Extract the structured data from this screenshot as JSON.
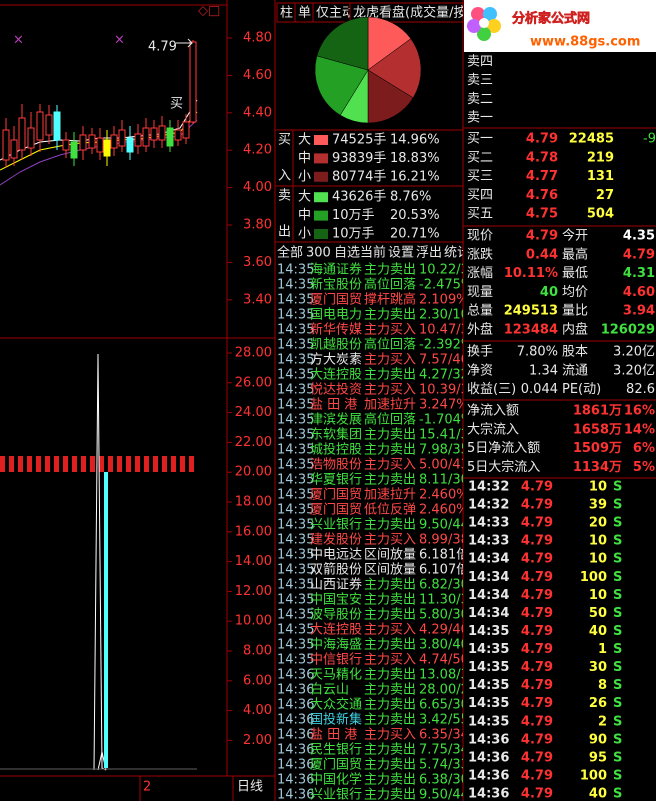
{
  "left_panel": {
    "price_axis": [
      "4.80",
      "4.60",
      "4.40",
      "4.20",
      "4.00",
      "3.80",
      "3.60",
      "3.40"
    ],
    "indicator_axis": [
      "28.00",
      "26.00",
      "24.00",
      "22.00",
      "20.00",
      "18.00",
      "16.00",
      "14.00",
      "12.00",
      "10.00",
      "8.00",
      "6.00",
      "4.00",
      "2.00"
    ],
    "price_marker": "4.79",
    "trade_tag": "买",
    "page_index": "2",
    "period": "日线"
  },
  "middle_panel": {
    "tabs": [
      "柱",
      "单",
      "仅主动",
      "龙虎看盘(成交量/按"
    ],
    "flow": {
      "buy_side": [
        "买",
        "入"
      ],
      "sell_side": [
        "卖",
        "出"
      ],
      "rows": [
        {
          "size": "大",
          "volume": "74525手",
          "pct": {
            "value": 14.96,
            "label": "14.96%"
          },
          "color": "#ff5a5a"
        },
        {
          "size": "中",
          "volume": "93839手",
          "pct": {
            "value": 18.83,
            "label": "18.83%"
          },
          "color": "#b43030"
        },
        {
          "size": "小",
          "volume": "80774手",
          "pct": {
            "value": 16.21,
            "label": "16.21%"
          },
          "color": "#7c1c1c"
        },
        {
          "size": "大",
          "volume": "43626手",
          "pct": {
            "value": 8.76,
            "label": "8.76%"
          },
          "color": "#50e050"
        },
        {
          "size": "中",
          "volume": "10万手",
          "pct": {
            "value": 20.53,
            "label": "20.53%"
          },
          "color": "#24a024"
        },
        {
          "size": "小",
          "volume": "10万手",
          "pct": {
            "value": 20.71,
            "label": "20.71%"
          },
          "color": "#146414"
        }
      ]
    },
    "filters": [
      "全部",
      "300",
      "自选",
      "当前",
      "设置",
      "浮出",
      "统计"
    ],
    "events": [
      {
        "time": "14:35",
        "name": "海通证券",
        "action": "主力卖出",
        "value": "10.22/3",
        "name_color": "#40e040",
        "color": "#40e040"
      },
      {
        "time": "14:35",
        "name": "新宝股份",
        "action": "高位回落",
        "value": "-2.475%",
        "name_color": "#40e040",
        "color": "#40e040"
      },
      {
        "time": "14:35",
        "name": "厦门国贸",
        "action": "撑杆跳高",
        "value": "2.109%",
        "name_color": "#ff4848",
        "color": "#ff4848"
      },
      {
        "time": "14:35",
        "name": "国电电力",
        "action": "主力卖出",
        "value": "2.30/10",
        "name_color": "#40e040",
        "color": "#40e040"
      },
      {
        "time": "14:35",
        "name": "新华传媒",
        "action": "主力买入",
        "value": "10.47/3",
        "name_color": "#ff4848",
        "color": "#ff4848"
      },
      {
        "time": "14:35",
        "name": "凯越股份",
        "action": "高位回落",
        "value": "-2.392%",
        "name_color": "#40e040",
        "color": "#40e040"
      },
      {
        "time": "14:35",
        "name": "方大炭素",
        "action": "主力买入",
        "value": "7.57/46",
        "name_color": "#e8e8e8",
        "color": "#ff4848"
      },
      {
        "time": "14:35",
        "name": "大连控股",
        "action": "主力卖出",
        "value": "4.27/32",
        "name_color": "#40e040",
        "color": "#40e040"
      },
      {
        "time": "14:35",
        "name": "悦达投资",
        "action": "主力买入",
        "value": "10.39/3",
        "name_color": "#ff4848",
        "color": "#ff4848"
      },
      {
        "time": "14:35",
        "name": "盐 田 港",
        "action": "加速拉升",
        "value": "3.247%",
        "name_color": "#ff4848",
        "color": "#ff4848"
      },
      {
        "time": "14:35",
        "name": "津滨发展",
        "action": "高位回落",
        "value": "-1.704%",
        "name_color": "#40e040",
        "color": "#40e040"
      },
      {
        "time": "14:35",
        "name": "东软集团",
        "action": "主力卖出",
        "value": "15.41/3",
        "name_color": "#40e040",
        "color": "#40e040"
      },
      {
        "time": "14:35",
        "name": "城投控股",
        "action": "主力卖出",
        "value": "7.98/35",
        "name_color": "#40e040",
        "color": "#40e040"
      },
      {
        "time": "14:35",
        "name": "浩物股份",
        "action": "主力买入",
        "value": "5.00/43",
        "name_color": "#ff4848",
        "color": "#ff4848"
      },
      {
        "time": "14:35",
        "name": "华夏银行",
        "action": "主力卖出",
        "value": "8.11/30",
        "name_color": "#40e040",
        "color": "#40e040"
      },
      {
        "time": "14:35",
        "name": "厦门国贸",
        "action": "加速拉升",
        "value": "2.460%",
        "name_color": "#ff4848",
        "color": "#ff4848"
      },
      {
        "time": "14:35",
        "name": "厦门国贸",
        "action": "低位反弹",
        "value": "2.460%",
        "name_color": "#ff4848",
        "color": "#ff4848"
      },
      {
        "time": "14:35",
        "name": "兴业银行",
        "action": "主力卖出",
        "value": "9.50/44",
        "name_color": "#40e040",
        "color": "#40e040"
      },
      {
        "time": "14:35",
        "name": "建发股份",
        "action": "主力买入",
        "value": "8.99/38",
        "name_color": "#ff4848",
        "color": "#ff4848"
      },
      {
        "time": "14:35",
        "name": "中电远达",
        "action": "区间放量",
        "value": "6.181倍",
        "name_color": "#e8e8e8",
        "color": "#e8e8e8"
      },
      {
        "time": "14:35",
        "name": "双箭股份",
        "action": "区间放量",
        "value": "6.107倍",
        "name_color": "#e8e8e8",
        "color": "#e8e8e8"
      },
      {
        "time": "14:35",
        "name": "山西证券",
        "action": "主力卖出",
        "value": "6.82/30",
        "name_color": "#e8e8e8",
        "color": "#40e040"
      },
      {
        "time": "14:35",
        "name": "中国宝安",
        "action": "主力卖出",
        "value": "11.30/3",
        "name_color": "#40e040",
        "color": "#40e040"
      },
      {
        "time": "14:35",
        "name": "波导股份",
        "action": "主力卖出",
        "value": "5.80/30",
        "name_color": "#40e040",
        "color": "#40e040"
      },
      {
        "time": "14:35",
        "name": "大连控股",
        "action": "主力买入",
        "value": "4.29/40",
        "name_color": "#ff4848",
        "color": "#ff4848"
      },
      {
        "time": "14:35",
        "name": "中海海盛",
        "action": "主力卖出",
        "value": "3.80/40",
        "name_color": "#40e040",
        "color": "#40e040"
      },
      {
        "time": "14:35",
        "name": "中信银行",
        "action": "主力买入",
        "value": "4.74/50",
        "name_color": "#ff4848",
        "color": "#ff4848"
      },
      {
        "time": "14:36",
        "name": "天马精化",
        "action": "主力卖出",
        "value": "13.08/3",
        "name_color": "#40e040",
        "color": "#40e040"
      },
      {
        "time": "14:36",
        "name": "白云山",
        "action": "主力卖出",
        "value": "28.00/2",
        "name_color": "#40e040",
        "color": "#40e040"
      },
      {
        "time": "14:36",
        "name": "大众交通",
        "action": "主力卖出",
        "value": "6.65/30",
        "name_color": "#40e040",
        "color": "#40e040"
      },
      {
        "time": "14:36",
        "name": "国投新集",
        "action": "主力卖出",
        "value": "3.42/55",
        "name_color": "#40d0e0",
        "color": "#40e040"
      },
      {
        "time": "14:36",
        "name": "盐 田 港",
        "action": "主力买入",
        "value": "6.35/34",
        "name_color": "#ff4848",
        "color": "#ff4848"
      },
      {
        "time": "14:36",
        "name": "民生银行",
        "action": "主力卖出",
        "value": "7.75/34",
        "name_color": "#40e040",
        "color": "#40e040"
      },
      {
        "time": "14:36",
        "name": "厦门国贸",
        "action": "主力卖出",
        "value": "5.74/33",
        "name_color": "#40e040",
        "color": "#40e040"
      },
      {
        "time": "14:36",
        "name": "中国化学",
        "action": "主力卖出",
        "value": "6.38/30",
        "name_color": "#40e040",
        "color": "#40e040"
      },
      {
        "time": "14:36",
        "name": "兴业银行",
        "action": "主力卖出",
        "value": "9.50/44",
        "name_color": "#40e040",
        "color": "#40e040"
      }
    ]
  },
  "right_panel": {
    "logo": {
      "title": "分析家公式网",
      "url": "www.88gs.com"
    },
    "asks": [
      "卖四",
      "卖三",
      "卖二",
      "卖一"
    ],
    "bids": [
      {
        "label": "买一",
        "price": "4.79",
        "volume": "22485",
        "change": "-9"
      },
      {
        "label": "买二",
        "price": "4.78",
        "volume": "219"
      },
      {
        "label": "买三",
        "price": "4.77",
        "volume": "131"
      },
      {
        "label": "买四",
        "price": "4.76",
        "volume": "27"
      },
      {
        "label": "买五",
        "price": "4.75",
        "volume": "504"
      }
    ],
    "quote": [
      [
        {
          "label": "现价",
          "value": "4.79",
          "color": "#ff3232"
        },
        {
          "label": "今开",
          "value": "4.35",
          "color": "#ffffff"
        }
      ],
      [
        {
          "label": "涨跌",
          "value": "0.44",
          "color": "#ff3232"
        },
        {
          "label": "最高",
          "value": "4.79",
          "color": "#ff3232"
        }
      ],
      [
        {
          "label": "涨幅",
          "value": "10.11%",
          "color": "#ff3232"
        },
        {
          "label": "最低",
          "value": "4.31",
          "color": "#40e040"
        }
      ],
      [
        {
          "label": "现量",
          "value": "40",
          "color": "#40e040"
        },
        {
          "label": "均价",
          "value": "4.60",
          "color": "#ff3232"
        }
      ],
      [
        {
          "label": "总量",
          "value": "249513",
          "color": "#ffff40"
        },
        {
          "label": "量比",
          "value": "3.94",
          "color": "#ff3232"
        }
      ],
      [
        {
          "label": "外盘",
          "value": "123484",
          "color": "#ff3232"
        },
        {
          "label": "内盘",
          "value": "126029",
          "color": "#40e040"
        }
      ]
    ],
    "fundamentals": [
      [
        {
          "label": "换手",
          "value": "7.80%"
        },
        {
          "label": "股本",
          "value": "3.20亿"
        }
      ],
      [
        {
          "label": "净资",
          "value": "1.34"
        },
        {
          "label": "流通",
          "value": "3.20亿"
        }
      ],
      [
        {
          "label": "收益(三)",
          "value": "0.044"
        },
        {
          "label": "PE(动)",
          "value": "82.6"
        }
      ]
    ],
    "flows": [
      {
        "label": "净流入额",
        "amount": "1861万",
        "pct": "16%"
      },
      {
        "label": "大宗流入",
        "amount": "1658万",
        "pct": "14%"
      },
      {
        "label": "5日净流入额",
        "amount": "1509万",
        "pct": "6%"
      },
      {
        "label": "5日大宗流入",
        "amount": "1134万",
        "pct": "5%"
      }
    ],
    "ticks": [
      {
        "time": "14:32",
        "price": "4.79",
        "volume": "10",
        "side": "S"
      },
      {
        "time": "14:32",
        "price": "4.79",
        "volume": "39",
        "side": "S"
      },
      {
        "time": "14:33",
        "price": "4.79",
        "volume": "20",
        "side": "S"
      },
      {
        "time": "14:33",
        "price": "4.79",
        "volume": "10",
        "side": "S"
      },
      {
        "time": "14:34",
        "price": "4.79",
        "volume": "10",
        "side": "S"
      },
      {
        "time": "14:34",
        "price": "4.79",
        "volume": "100",
        "side": "S"
      },
      {
        "time": "14:34",
        "price": "4.79",
        "volume": "10",
        "side": "S"
      },
      {
        "time": "14:34",
        "price": "4.79",
        "volume": "50",
        "side": "S"
      },
      {
        "time": "14:35",
        "price": "4.79",
        "volume": "40",
        "side": "S"
      },
      {
        "time": "14:35",
        "price": "4.79",
        "volume": "1",
        "side": "S"
      },
      {
        "time": "14:35",
        "price": "4.79",
        "volume": "30",
        "side": "S"
      },
      {
        "time": "14:35",
        "price": "4.79",
        "volume": "8",
        "side": "S"
      },
      {
        "time": "14:35",
        "price": "4.79",
        "volume": "26",
        "side": "S"
      },
      {
        "time": "14:35",
        "price": "4.79",
        "volume": "2",
        "side": "S"
      },
      {
        "time": "14:36",
        "price": "4.79",
        "volume": "90",
        "side": "S"
      },
      {
        "time": "14:36",
        "price": "4.79",
        "volume": "95",
        "side": "S"
      },
      {
        "time": "14:36",
        "price": "4.79",
        "volume": "100",
        "side": "S"
      },
      {
        "time": "14:36",
        "price": "4.79",
        "volume": "40",
        "side": "S"
      }
    ]
  }
}
